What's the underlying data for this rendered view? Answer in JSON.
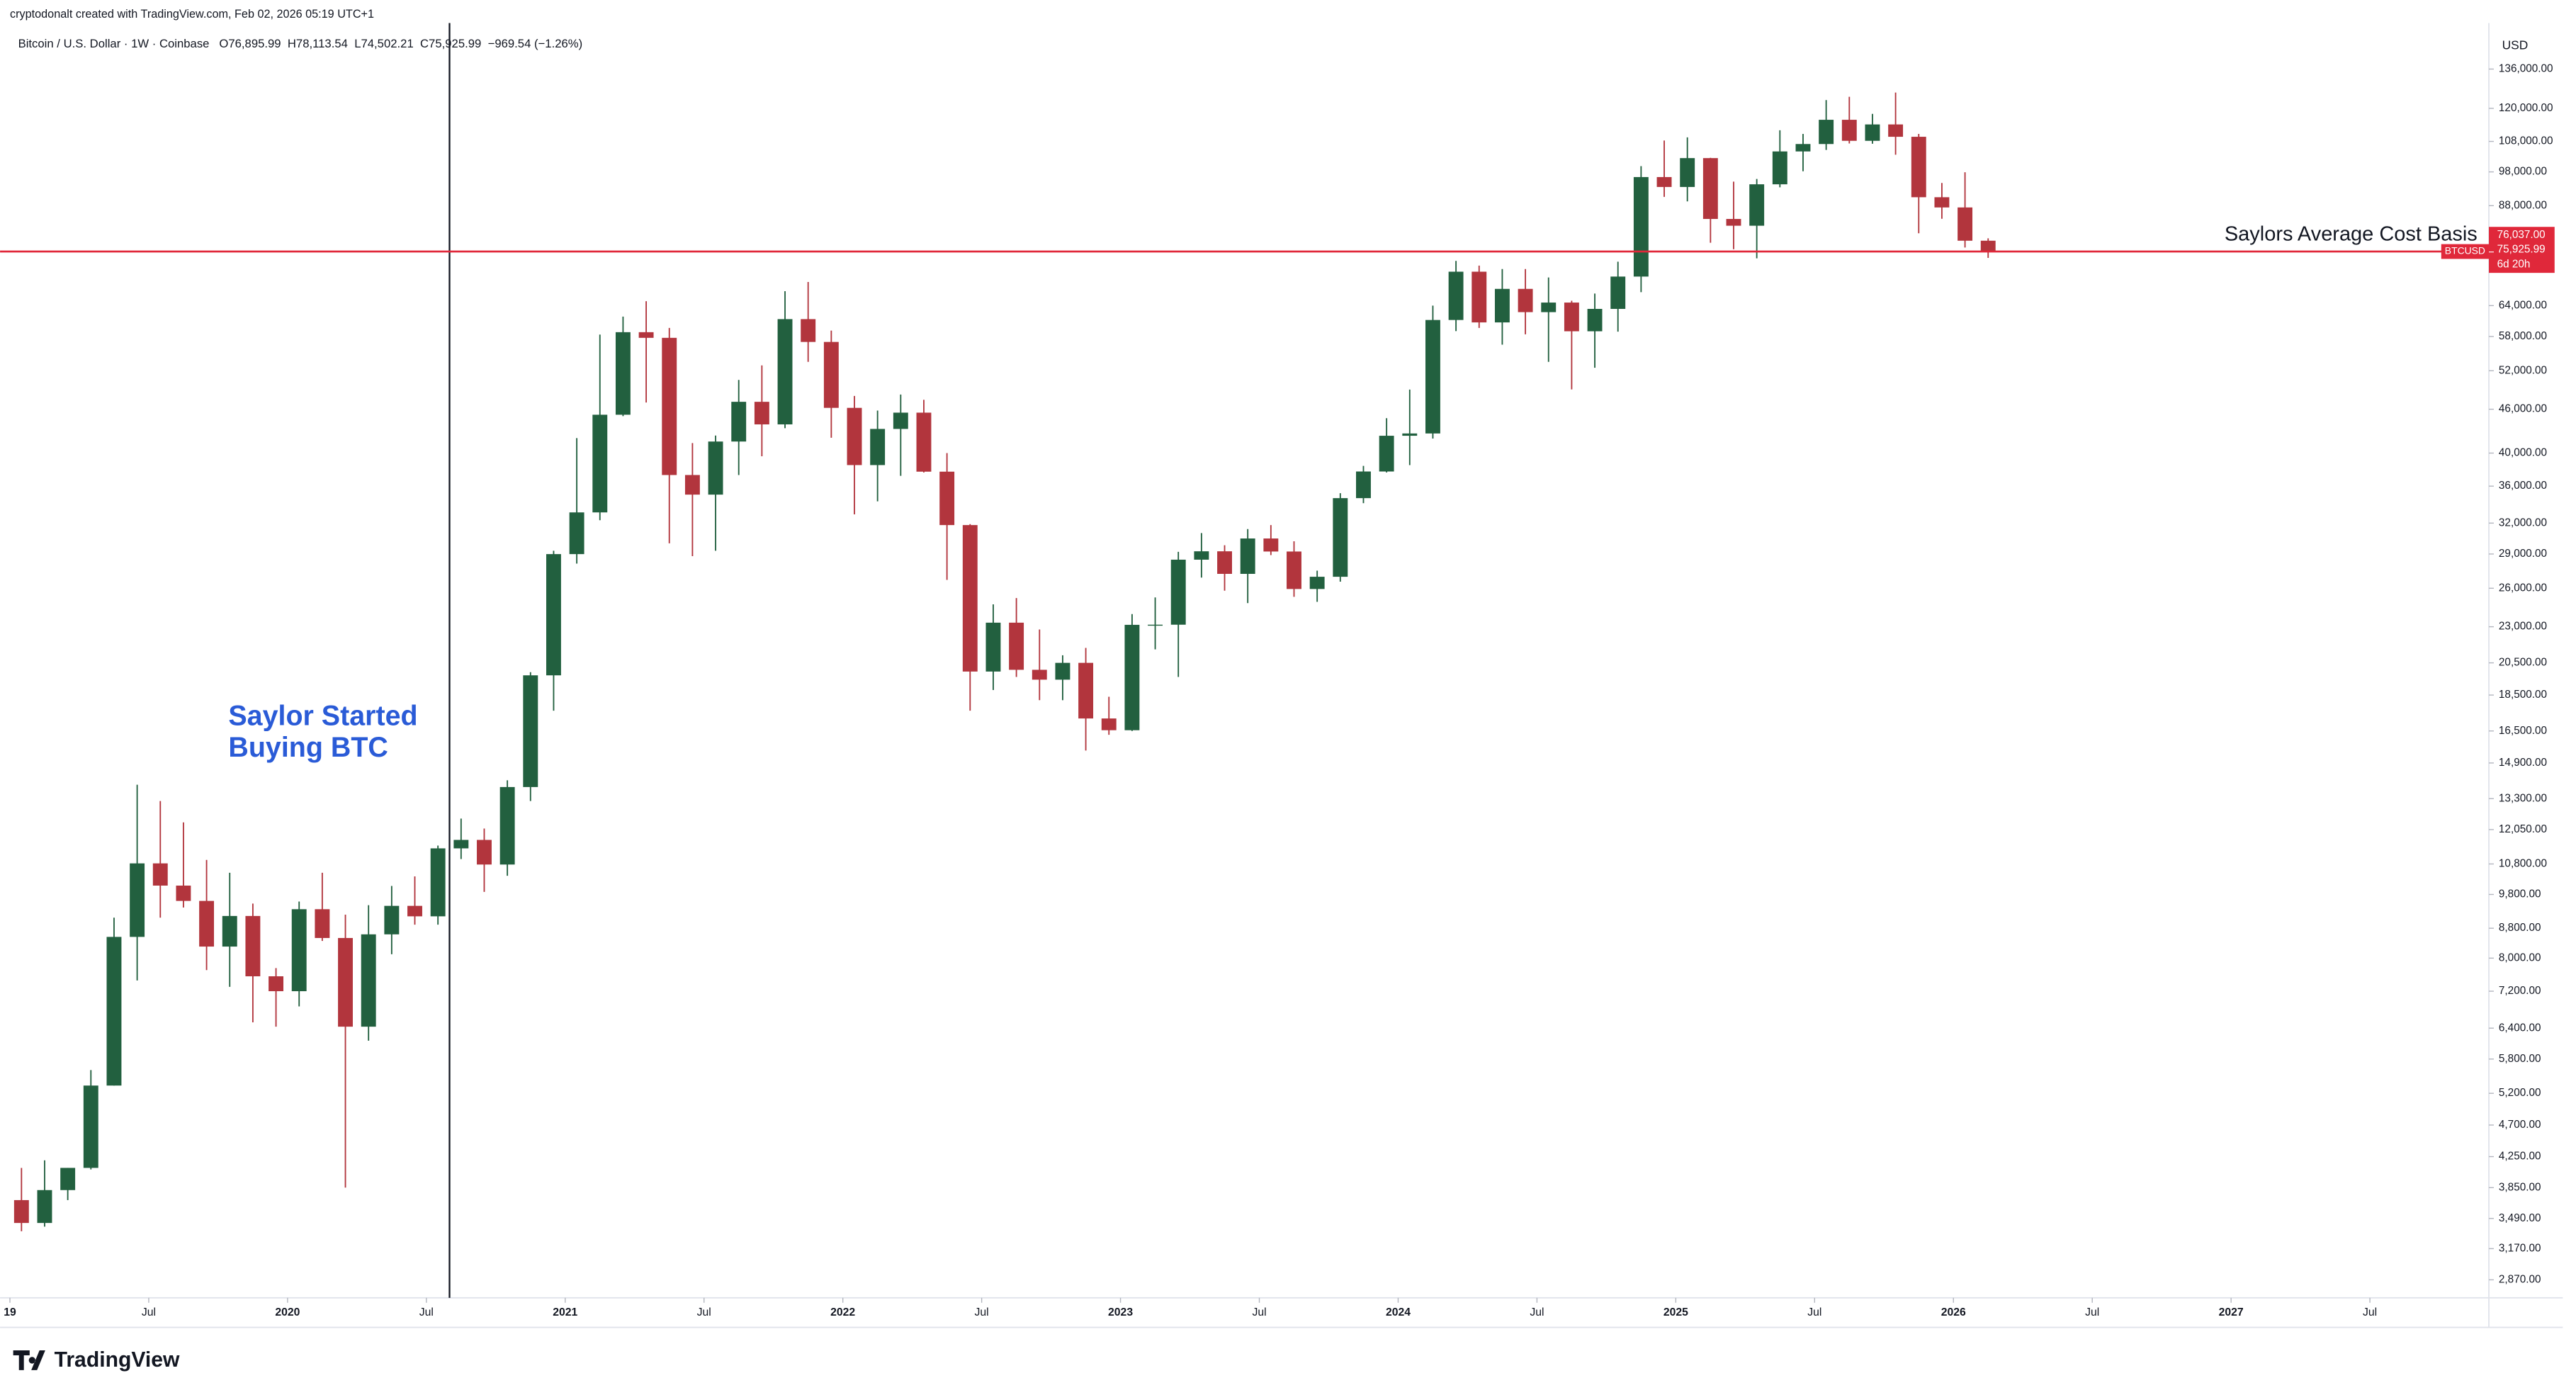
{
  "chart_data": {
    "type": "candlestick",
    "attribution": "cryptodonalt created with TradingView.com, Feb 02, 2026 05:19 UTC+1",
    "symbol": "Bitcoin / U.S. Dollar · 1W · Coinbase",
    "header_ohlc": [
      "O76,895.99",
      "H78,113.54",
      "L74,502.21",
      "C75,925.99",
      "−969.54 (−1.26%)"
    ],
    "currency": "USD",
    "brand": "TradingView",
    "log_scale": true,
    "grid": false,
    "up_color": "#22603f",
    "down_color": "#b2353d",
    "x": [
      "2019-01",
      "2019-02",
      "2019-03",
      "2019-04",
      "2019-05",
      "2019-06",
      "2019-07",
      "2019-08",
      "2019-09",
      "2019-10",
      "2019-11",
      "2019-12",
      "2020-01",
      "2020-02",
      "2020-03",
      "2020-04",
      "2020-05",
      "2020-06",
      "2020-07",
      "2020-08",
      "2020-09",
      "2020-10",
      "2020-11",
      "2020-12",
      "2021-01",
      "2021-02",
      "2021-03",
      "2021-04",
      "2021-05",
      "2021-06",
      "2021-07",
      "2021-08",
      "2021-09",
      "2021-10",
      "2021-11",
      "2021-12",
      "2022-01",
      "2022-02",
      "2022-03",
      "2022-04",
      "2022-05",
      "2022-06",
      "2022-07",
      "2022-08",
      "2022-09",
      "2022-10",
      "2022-11",
      "2022-12",
      "2023-01",
      "2023-02",
      "2023-03",
      "2023-04",
      "2023-05",
      "2023-06",
      "2023-07",
      "2023-08",
      "2023-09",
      "2023-10",
      "2023-11",
      "2023-12",
      "2024-01",
      "2024-02",
      "2024-03",
      "2024-04",
      "2024-05",
      "2024-06",
      "2024-07",
      "2024-08",
      "2024-09",
      "2024-10",
      "2024-11",
      "2024-12",
      "2025-01",
      "2025-02",
      "2025-03",
      "2025-04",
      "2025-05",
      "2025-06",
      "2025-07",
      "2025-08",
      "2025-09",
      "2025-10",
      "2025-11",
      "2025-12",
      "2026-01",
      "2026-02"
    ],
    "open": [
      3700,
      3440,
      3820,
      4100,
      5330,
      8560,
      10820,
      10080,
      9600,
      8300,
      9150,
      7550,
      7200,
      9350,
      8530,
      6430,
      8630,
      9450,
      9140,
      11350,
      11660,
      10780,
      13800,
      19700,
      28990,
      33110,
      45200,
      58800,
      57750,
      37300,
      35040,
      41500,
      47100,
      43830,
      61300,
      57000,
      46200,
      38500,
      43200,
      45500,
      37700,
      31800,
      19940,
      23300,
      20050,
      19430,
      20500,
      17170,
      16540,
      23140,
      23150,
      28480,
      29250,
      27220,
      30470,
      29230,
      25940,
      26970,
      34650,
      37720,
      42270,
      42580,
      61130,
      71300,
      60660,
      67500,
      62680,
      64620,
      58970,
      63330,
      70200,
      96400,
      93400,
      102400,
      84350,
      82550,
      94200,
      104600,
      107100,
      115700,
      108200,
      114000,
      109600,
      90400,
      87500,
      78700
    ],
    "high": [
      4100,
      4200,
      4100,
      5600,
      9100,
      13900,
      13200,
      12330,
      10940,
      10500,
      9520,
      7750,
      9580,
      10500,
      9190,
      9470,
      10070,
      10380,
      11450,
      12480,
      12090,
      14100,
      19900,
      29300,
      41950,
      58350,
      61790,
      64900,
      59600,
      41300,
      42300,
      50500,
      52900,
      67000,
      69000,
      59100,
      47990,
      45800,
      48200,
      47400,
      40000,
      31900,
      24700,
      25200,
      22800,
      21000,
      21500,
      18400,
      23950,
      25250,
      29200,
      31000,
      29820,
      31400,
      31800,
      30200,
      27500,
      35200,
      38400,
      44700,
      48970,
      64000,
      73800,
      72700,
      71900,
      71900,
      70000,
      65000,
      66500,
      73600,
      99800,
      108300,
      109400,
      102500,
      95000,
      95800,
      111900,
      110600,
      123200,
      124500,
      117900,
      126200,
      110600,
      94600,
      97900,
      79300
    ],
    "low": [
      3350,
      3400,
      3700,
      4080,
      5330,
      7450,
      9100,
      9400,
      7700,
      7300,
      6520,
      6430,
      6860,
      8450,
      3850,
      6150,
      8100,
      8900,
      8900,
      10970,
      9880,
      10400,
      13200,
      17600,
      28130,
      32300,
      45000,
      47000,
      30000,
      28800,
      29300,
      37300,
      39600,
      43300,
      53500,
      42000,
      32900,
      34300,
      37200,
      37600,
      26700,
      17600,
      18800,
      19600,
      18200,
      18200,
      15500,
      16300,
      16500,
      21400,
      19600,
      26900,
      25800,
      24800,
      28900,
      25300,
      24900,
      26550,
      34100,
      37600,
      38500,
      41900,
      59000,
      59600,
      56500,
      58400,
      53500,
      49000,
      52500,
      58900,
      66800,
      90500,
      89200,
      78200,
      76600,
      74400,
      93300,
      98200,
      105100,
      107300,
      107200,
      103500,
      80600,
      84400,
      77000,
      74502
    ],
    "close": [
      3440,
      3820,
      4100,
      5330,
      8560,
      10820,
      10080,
      9600,
      8300,
      9150,
      7550,
      7200,
      9350,
      8530,
      6430,
      8630,
      9450,
      9140,
      11350,
      11660,
      10780,
      13800,
      19700,
      28990,
      33110,
      45200,
      58800,
      57750,
      37300,
      35040,
      41500,
      47100,
      43830,
      61300,
      57000,
      46200,
      38500,
      43200,
      45500,
      37700,
      31800,
      19940,
      23300,
      20050,
      19430,
      20500,
      17170,
      16540,
      23140,
      23150,
      28480,
      29250,
      27220,
      30470,
      29230,
      25940,
      26970,
      34650,
      37720,
      42270,
      42580,
      61130,
      71300,
      60660,
      67500,
      62680,
      64620,
      58970,
      63330,
      70200,
      96400,
      93400,
      102400,
      84350,
      82550,
      94200,
      104600,
      107100,
      115700,
      108200,
      114000,
      109600,
      90400,
      87500,
      78700,
      75926
    ],
    "xlim": [
      "2019-01",
      "2027-12"
    ],
    "xticks": [
      {
        "value": "2019-01",
        "label": "19"
      },
      {
        "value": "2019-07",
        "label": "Jul"
      },
      {
        "value": "2020-01",
        "label": "2020"
      },
      {
        "value": "2020-07",
        "label": "Jul"
      },
      {
        "value": "2021-01",
        "label": "2021"
      },
      {
        "value": "2021-07",
        "label": "Jul"
      },
      {
        "value": "2022-01",
        "label": "2022"
      },
      {
        "value": "2022-07",
        "label": "Jul"
      },
      {
        "value": "2023-01",
        "label": "2023"
      },
      {
        "value": "2023-07",
        "label": "Jul"
      },
      {
        "value": "2024-01",
        "label": "2024"
      },
      {
        "value": "2024-07",
        "label": "Jul"
      },
      {
        "value": "2025-01",
        "label": "2025"
      },
      {
        "value": "2025-07",
        "label": "Jul"
      },
      {
        "value": "2026-01",
        "label": "2026"
      },
      {
        "value": "2026-07",
        "label": "Jul"
      },
      {
        "value": "2027-01",
        "label": "2027"
      },
      {
        "value": "2027-07",
        "label": "Jul"
      }
    ],
    "ylim": [
      2710,
      157500
    ],
    "yticks": [
      {
        "value": 136000,
        "label": "136,000.00"
      },
      {
        "value": 120000,
        "label": "120,000.00"
      },
      {
        "value": 108000,
        "label": "108,000.00"
      },
      {
        "value": 98000,
        "label": "98,000.00"
      },
      {
        "value": 88000,
        "label": "88,000.00"
      },
      {
        "value": 64000,
        "label": "64,000.00"
      },
      {
        "value": 58000,
        "label": "58,000.00"
      },
      {
        "value": 52000,
        "label": "52,000.00"
      },
      {
        "value": 46000,
        "label": "46,000.00"
      },
      {
        "value": 40000,
        "label": "40,000.00"
      },
      {
        "value": 36000,
        "label": "36,000.00"
      },
      {
        "value": 32000,
        "label": "32,000.00"
      },
      {
        "value": 29000,
        "label": "29,000.00"
      },
      {
        "value": 26000,
        "label": "26,000.00"
      },
      {
        "value": 23000,
        "label": "23,000.00"
      },
      {
        "value": 20500,
        "label": "20,500.00"
      },
      {
        "value": 18500,
        "label": "18,500.00"
      },
      {
        "value": 16500,
        "label": "16,500.00"
      },
      {
        "value": 14900,
        "label": "14,900.00"
      },
      {
        "value": 13300,
        "label": "13,300.00"
      },
      {
        "value": 12050,
        "label": "12,050.00"
      },
      {
        "value": 10800,
        "label": "10,800.00"
      },
      {
        "value": 9800,
        "label": "9,800.00"
      },
      {
        "value": 8800,
        "label": "8,800.00"
      },
      {
        "value": 8000,
        "label": "8,000.00"
      },
      {
        "value": 7200,
        "label": "7,200.00"
      },
      {
        "value": 6400,
        "label": "6,400.00"
      },
      {
        "value": 5800,
        "label": "5,800.00"
      },
      {
        "value": 5200,
        "label": "5,200.00"
      },
      {
        "value": 4700,
        "label": "4,700.00"
      },
      {
        "value": 4250,
        "label": "4,250.00"
      },
      {
        "value": 3850,
        "label": "3,850.00"
      },
      {
        "value": 3490,
        "label": "3,490.00"
      },
      {
        "value": 3170,
        "label": "3,170.00"
      },
      {
        "value": 2870,
        "label": "2,870.00"
      }
    ],
    "hline": {
      "value": 76037,
      "label": "76,037.00",
      "text": "Saylors Average Cost Basis",
      "color": "#e0283a"
    },
    "vline": {
      "x": "2020-08",
      "text": [
        "Saylor Started",
        "Buying BTC"
      ],
      "color": "#2a5bd7"
    },
    "last_price": {
      "value": 75925.99,
      "label": "75,925.99",
      "tag": "BTCUSD",
      "countdown": "6d 20h"
    }
  }
}
